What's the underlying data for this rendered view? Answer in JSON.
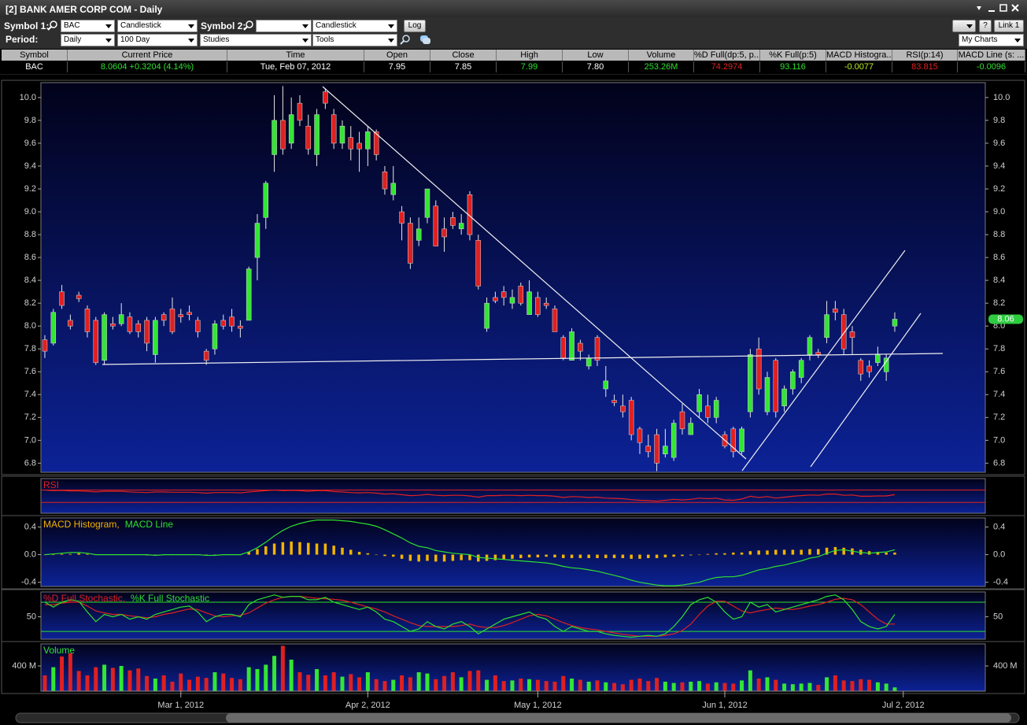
{
  "window": {
    "title": "[2] BANK AMER CORP COM - Daily"
  },
  "toolbar": {
    "symbol1_label": "Symbol 1:",
    "symbol1": "BAC",
    "chart_type1": "Candlestick",
    "symbol2_label": "Symbol 2:",
    "chart_type2": "Candlestick",
    "log_button": "Log",
    "period_label": "Period:",
    "period": "Daily",
    "range": "100 Day",
    "studies": "Studies",
    "tools": "Tools",
    "help": "?",
    "link": "Link 1",
    "my_charts": "My Charts"
  },
  "quote": {
    "headers": [
      "Symbol",
      "Current Price",
      "Time",
      "Open",
      "Close",
      "High",
      "Low",
      "Volume",
      "%D Full(dp:5, p...",
      "%K Full(p:5)",
      "MACD Histogra...",
      "RSI(p:14)",
      "MACD Line (s: ..."
    ],
    "row": [
      "BAC",
      "8.0604 +0.3204 (4.14%)",
      "Tue, Feb 07, 2012",
      "7.95",
      "7.85",
      "7.99",
      "7.80",
      "253.26M",
      "74.2974",
      "93.116",
      "-0.0077",
      "83.815",
      "-0.0096"
    ]
  },
  "chart_data": [
    {
      "type": "candlestick",
      "xlim": [
        -0.46,
        110.65
      ],
      "xticks": [
        {
          "value": 16,
          "label": "Mar 1, 2012"
        },
        {
          "value": 38,
          "label": "Apr 2, 2012"
        },
        {
          "value": 58,
          "label": "May 1, 2012"
        },
        {
          "value": 80,
          "label": "Jun 1, 2012"
        },
        {
          "value": 101,
          "label": "Jul 2, 2012"
        }
      ],
      "ylim": [
        6.72,
        10.13
      ],
      "yticks": [
        {
          "value": 10,
          "label": "10.0"
        },
        9.8,
        9.6,
        9.4,
        9.2,
        {
          "value": 9,
          "label": "9.0"
        },
        8.8,
        8.6,
        8.4,
        8.2,
        {
          "value": 8,
          "label": "8.0"
        },
        7.8,
        7.6,
        7.4,
        7.2,
        {
          "value": 7,
          "label": "7.0"
        },
        6.8
      ],
      "up_color": "#33e633",
      "down_color": "#e02020",
      "open": [
        7.88,
        7.85,
        8.3,
        8.05,
        8.27,
        8.15,
        8.05,
        7.7,
        8.02,
        8.02,
        8.08,
        8.02,
        8.05,
        7.75,
        8.1,
        8.15,
        8.1,
        8.12,
        8.05,
        7.78,
        7.8,
        8.05,
        8.08,
        8.0,
        8.05,
        8.6,
        8.95,
        9.5,
        9.8,
        9.6,
        9.95,
        9.75,
        9.5,
        10.05,
        9.85,
        9.6,
        9.65,
        9.6,
        9.55,
        9.7,
        9.35,
        9.15,
        9.0,
        8.9,
        8.75,
        8.95,
        9.05,
        8.85,
        8.95,
        8.85,
        9.15,
        8.75,
        7.98,
        8.25,
        8.3,
        8.2,
        8.35,
        8.1,
        8.25,
        8.2,
        8.15,
        7.9,
        7.7,
        7.85,
        7.65,
        7.9,
        7.45,
        7.35,
        7.3,
        7.35,
        7.1,
        6.95,
        7.05,
        6.88,
        6.85,
        7.25,
        7.05,
        7.25,
        7.3,
        7.2,
        7.05,
        7.1,
        6.9,
        7.25,
        7.8,
        7.25,
        7.7,
        7.3,
        7.45,
        7.55,
        7.75,
        7.77,
        7.9,
        8.15,
        8.1,
        7.95,
        7.7,
        7.65,
        7.68,
        7.6,
        8.0
      ],
      "high": [
        7.92,
        8.15,
        8.36,
        8.1,
        8.3,
        8.18,
        8.08,
        8.12,
        8.08,
        8.2,
        8.12,
        8.05,
        8.08,
        8.08,
        8.12,
        8.25,
        8.15,
        8.18,
        8.08,
        7.8,
        8.05,
        8.1,
        8.15,
        8.05,
        8.52,
        8.98,
        9.27,
        10.02,
        10.1,
        10.0,
        10.02,
        9.85,
        9.9,
        10.08,
        9.9,
        9.8,
        9.75,
        9.7,
        9.75,
        9.72,
        9.4,
        9.4,
        9.05,
        8.95,
        8.95,
        9.2,
        9.1,
        8.95,
        9.0,
        8.98,
        9.18,
        8.8,
        8.25,
        8.3,
        8.35,
        8.32,
        8.38,
        8.4,
        8.3,
        8.25,
        8.18,
        7.92,
        7.98,
        7.88,
        7.75,
        7.92,
        7.65,
        7.4,
        7.4,
        7.38,
        7.12,
        7.05,
        7.1,
        7.1,
        7.18,
        7.32,
        7.2,
        7.45,
        7.4,
        7.38,
        7.08,
        7.12,
        7.12,
        7.8,
        7.9,
        7.6,
        7.72,
        7.48,
        7.62,
        7.72,
        7.92,
        7.8,
        8.22,
        8.22,
        8.15,
        8.0,
        7.72,
        7.7,
        7.82,
        7.75,
        8.12
      ],
      "low": [
        7.72,
        7.83,
        8.15,
        7.97,
        8.21,
        7.9,
        7.66,
        7.66,
        7.97,
        8.0,
        7.93,
        7.9,
        7.78,
        7.68,
        8.0,
        7.93,
        8.03,
        8.05,
        7.9,
        7.66,
        7.75,
        7.97,
        7.95,
        7.9,
        8.05,
        8.4,
        8.85,
        9.35,
        9.5,
        9.55,
        9.75,
        9.5,
        9.4,
        9.9,
        9.55,
        9.55,
        9.45,
        9.35,
        9.4,
        9.45,
        9.15,
        9.1,
        8.75,
        8.5,
        8.7,
        8.9,
        8.7,
        8.65,
        8.85,
        8.8,
        8.75,
        8.32,
        7.95,
        8.2,
        8.18,
        8.15,
        8.18,
        8.1,
        8.08,
        8.15,
        7.95,
        7.7,
        7.7,
        7.7,
        7.62,
        7.65,
        7.38,
        7.3,
        7.2,
        7.0,
        6.88,
        6.85,
        6.73,
        6.85,
        6.82,
        7.05,
        7.05,
        7.2,
        7.15,
        7.15,
        6.93,
        6.85,
        6.88,
        7.2,
        7.4,
        7.22,
        7.2,
        7.25,
        7.4,
        7.5,
        7.7,
        7.72,
        7.85,
        8.05,
        7.75,
        7.75,
        7.52,
        7.55,
        7.65,
        7.52,
        7.95
      ],
      "close": [
        7.78,
        8.12,
        8.18,
        8.0,
        8.24,
        7.95,
        7.68,
        8.1,
        8.0,
        8.1,
        7.95,
        7.95,
        7.85,
        8.05,
        8.05,
        7.95,
        8.08,
        8.1,
        7.95,
        7.7,
        8.02,
        8.0,
        8.0,
        7.98,
        8.5,
        8.9,
        9.25,
        9.8,
        9.55,
        9.85,
        9.8,
        9.55,
        9.85,
        9.95,
        9.6,
        9.75,
        9.55,
        9.55,
        9.7,
        9.5,
        9.2,
        9.25,
        8.9,
        8.55,
        8.85,
        9.2,
        8.7,
        8.78,
        8.88,
        8.9,
        8.8,
        8.35,
        8.2,
        8.22,
        8.25,
        8.25,
        8.2,
        8.3,
        8.1,
        8.18,
        7.95,
        7.72,
        7.95,
        7.78,
        7.72,
        7.7,
        7.52,
        7.33,
        7.25,
        7.05,
        6.98,
        6.9,
        6.8,
        6.95,
        7.15,
        7.1,
        7.15,
        7.4,
        7.2,
        7.35,
        6.95,
        6.9,
        7.1,
        7.75,
        7.45,
        7.55,
        7.25,
        7.45,
        7.6,
        7.7,
        7.9,
        7.75,
        8.1,
        8.12,
        7.8,
        7.9,
        7.58,
        7.6,
        7.75,
        7.72,
        8.06
      ],
      "price_tag": {
        "value": 8.06,
        "label": "8.06"
      }
    },
    {
      "type": "line",
      "ylim": [
        -5,
        107
      ],
      "levels": [
        30,
        70
      ],
      "level_color": "#e02020",
      "series": [
        {
          "name": "RSI",
          "color": "#e02020",
          "values": [
            70,
            68,
            69,
            67,
            67,
            66,
            64,
            66,
            66,
            66,
            64,
            63,
            62,
            64,
            64,
            63,
            63,
            63,
            62,
            60,
            62,
            62,
            62,
            61,
            64,
            66,
            68,
            70,
            68,
            69,
            68,
            66,
            68,
            68,
            65,
            64,
            62,
            61,
            62,
            60,
            57,
            58,
            55,
            52,
            53,
            56,
            53,
            52,
            53,
            53,
            51,
            47,
            52,
            52,
            53,
            53,
            52,
            53,
            52,
            52,
            50,
            46,
            49,
            48,
            46,
            47,
            44,
            43,
            42,
            39,
            37,
            36,
            34,
            37,
            40,
            38,
            40,
            44,
            42,
            44,
            38,
            37,
            41,
            50,
            46,
            49,
            44,
            47,
            50,
            52,
            54,
            53,
            57,
            57,
            53,
            54,
            50,
            50,
            51,
            51,
            55
          ]
        }
      ]
    },
    {
      "type": "combo",
      "ylim": [
        -0.46,
        0.53
      ],
      "yticks": [
        0.4,
        {
          "value": 0,
          "label": "0.0"
        },
        -0.4
      ],
      "series": [
        {
          "name": "MACD Histogram,",
          "color": "#f5b400",
          "style": "bar",
          "values": [
            0,
            0,
            0.01,
            0.01,
            0.02,
            0.01,
            0,
            0,
            0,
            0,
            0,
            0,
            -0.01,
            0,
            0,
            0,
            0,
            0,
            0,
            -0.01,
            0,
            0,
            0,
            0,
            0.04,
            0.08,
            0.12,
            0.16,
            0.18,
            0.19,
            0.18,
            0.17,
            0.16,
            0.16,
            0.13,
            0.1,
            0.07,
            0.04,
            0.02,
            0,
            -0.02,
            -0.03,
            -0.06,
            -0.09,
            -0.1,
            -0.09,
            -0.1,
            -0.1,
            -0.09,
            -0.08,
            -0.08,
            -0.1,
            -0.09,
            -0.08,
            -0.07,
            -0.06,
            -0.05,
            -0.04,
            -0.04,
            -0.03,
            -0.04,
            -0.05,
            -0.05,
            -0.05,
            -0.05,
            -0.05,
            -0.05,
            -0.05,
            -0.05,
            -0.06,
            -0.06,
            -0.05,
            -0.05,
            -0.04,
            -0.03,
            -0.02,
            -0.01,
            0,
            0.01,
            0.02,
            0.02,
            0.03,
            0.03,
            0.05,
            0.06,
            0.06,
            0.07,
            0.07,
            0.07,
            0.07,
            0.08,
            0.08,
            0.1,
            0.11,
            0.1,
            0.09,
            0.07,
            0.05,
            0.04,
            0.03,
            0.03
          ]
        },
        {
          "name": "MACD Line",
          "color": "#2ee02e",
          "style": "line",
          "values": [
            0,
            0.01,
            0.02,
            0.03,
            0.03,
            0.02,
            0,
            0,
            0,
            0,
            0,
            0,
            0,
            -0.01,
            0,
            0,
            0,
            0,
            0,
            -0.01,
            -0.01,
            0,
            0,
            0,
            0.04,
            0.1,
            0.18,
            0.27,
            0.35,
            0.41,
            0.45,
            0.48,
            0.5,
            0.5,
            0.5,
            0.49,
            0.48,
            0.46,
            0.44,
            0.41,
            0.36,
            0.3,
            0.24,
            0.17,
            0.12,
            0.1,
            0.06,
            0.04,
            0.02,
            0.01,
            0,
            -0.04,
            -0.05,
            -0.06,
            -0.07,
            -0.08,
            -0.09,
            -0.1,
            -0.11,
            -0.12,
            -0.14,
            -0.17,
            -0.19,
            -0.2,
            -0.22,
            -0.24,
            -0.27,
            -0.3,
            -0.33,
            -0.37,
            -0.4,
            -0.42,
            -0.44,
            -0.45,
            -0.45,
            -0.44,
            -0.42,
            -0.4,
            -0.36,
            -0.33,
            -0.32,
            -0.32,
            -0.3,
            -0.26,
            -0.22,
            -0.2,
            -0.17,
            -0.15,
            -0.12,
            -0.09,
            -0.05,
            -0.03,
            0.02,
            0.06,
            0.07,
            0.05,
            0.03,
            0.02,
            0.03,
            0.04,
            0.07
          ]
        }
      ]
    },
    {
      "type": "line",
      "ylim": [
        4,
        101
      ],
      "yticks": [
        50
      ],
      "levels": [
        20,
        80
      ],
      "level_color": "#2ee02e",
      "series": [
        {
          "name": "%D Full Stochastic,",
          "color": "#e02020",
          "values": [
            75,
            75,
            78,
            80,
            80,
            72,
            62,
            58,
            55,
            55,
            52,
            50,
            48,
            50,
            55,
            58,
            62,
            66,
            65,
            58,
            52,
            50,
            52,
            53,
            58,
            68,
            78,
            85,
            90,
            92,
            92,
            90,
            88,
            87,
            86,
            84,
            80,
            75,
            70,
            66,
            60,
            52,
            45,
            38,
            32,
            30,
            30,
            30,
            30,
            32,
            35,
            30,
            28,
            28,
            32,
            38,
            45,
            52,
            55,
            52,
            45,
            38,
            32,
            28,
            25,
            23,
            20,
            17,
            14,
            12,
            10,
            10,
            10,
            12,
            15,
            22,
            35,
            55,
            72,
            82,
            82,
            72,
            62,
            58,
            62,
            65,
            68,
            66,
            65,
            68,
            72,
            75,
            80,
            86,
            88,
            85,
            75,
            60,
            45,
            35,
            35
          ]
        },
        {
          "name": "%K Full Stochastic",
          "color": "#2ee02e",
          "values": [
            80,
            70,
            80,
            85,
            82,
            60,
            40,
            55,
            50,
            55,
            45,
            50,
            45,
            55,
            60,
            65,
            70,
            72,
            60,
            40,
            50,
            55,
            55,
            50,
            75,
            85,
            90,
            95,
            90,
            92,
            92,
            85,
            85,
            90,
            80,
            75,
            70,
            65,
            70,
            60,
            45,
            40,
            30,
            20,
            25,
            40,
            30,
            25,
            35,
            40,
            30,
            15,
            25,
            35,
            45,
            50,
            55,
            60,
            50,
            45,
            30,
            20,
            30,
            25,
            20,
            20,
            15,
            12,
            10,
            8,
            10,
            12,
            10,
            15,
            30,
            50,
            75,
            85,
            90,
            80,
            60,
            45,
            50,
            80,
            70,
            75,
            60,
            65,
            70,
            75,
            80,
            85,
            92,
            95,
            85,
            65,
            40,
            30,
            25,
            30,
            55
          ]
        }
      ]
    },
    {
      "type": "bar",
      "ylim": [
        0,
        750
      ],
      "yticks": [
        {
          "value": 400,
          "label": "400 M"
        }
      ],
      "up_color": "#33e633",
      "down_color": "#e02020",
      "series": [
        {
          "name": "Volume",
          "color": "#33e633",
          "values": [
            250,
            380,
            550,
            600,
            320,
            250,
            380,
            420,
            370,
            400,
            330,
            360,
            240,
            200,
            250,
            150,
            280,
            180,
            230,
            210,
            300,
            280,
            210,
            190,
            380,
            350,
            420,
            560,
            720,
            500,
            300,
            260,
            350,
            250,
            300,
            230,
            270,
            220,
            300,
            190,
            160,
            180,
            250,
            220,
            300,
            280,
            190,
            240,
            300,
            220,
            320,
            330,
            180,
            250,
            160,
            170,
            200,
            190,
            180,
            160,
            150,
            240,
            200,
            180,
            150,
            170,
            140,
            130,
            110,
            180,
            200,
            160,
            210,
            150,
            130,
            140,
            150,
            160,
            120,
            140,
            130,
            120,
            170,
            330,
            200,
            220,
            180,
            120,
            110,
            120,
            130,
            100,
            220,
            250,
            170,
            160,
            190,
            180,
            140,
            120,
            60
          ]
        }
      ]
    }
  ]
}
